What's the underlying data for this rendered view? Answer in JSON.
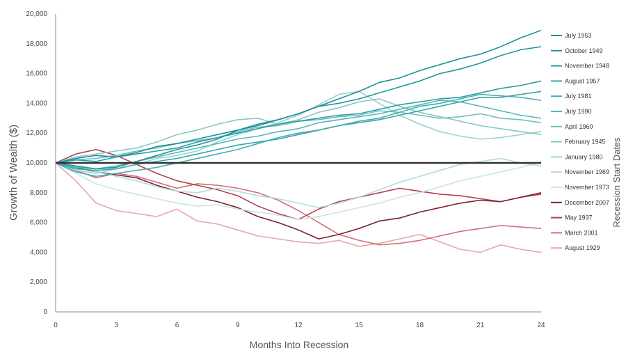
{
  "chart_data": {
    "type": "line",
    "xlabel": "Months Into Recession",
    "ylabel": "Growth of Wealth ($)",
    "right_label": "Recession Start Dates",
    "xlim": [
      0,
      24
    ],
    "ylim": [
      0,
      20000
    ],
    "x_ticks": [
      0,
      3,
      6,
      9,
      12,
      15,
      18,
      21,
      24
    ],
    "x_tick_labels": [
      "0",
      "3",
      "6",
      "9",
      "12",
      "15",
      "18",
      "21",
      "24"
    ],
    "y_ticks": [
      0,
      2000,
      4000,
      6000,
      8000,
      10000,
      12000,
      14000,
      16000,
      18000,
      20000
    ],
    "y_tick_labels": [
      "0",
      "2,000",
      "4,000",
      "6,000",
      "8,000",
      "10,000",
      "12,000",
      "14,000",
      "16,000",
      "18,000",
      "20,000"
    ],
    "baseline": 10000,
    "baseline_color": "#333333",
    "grid": false,
    "legend_position": "right",
    "series": [
      {
        "name": "July 1953",
        "color": "#1f8f9b",
        "values": [
          10000,
          10300,
          10500,
          10400,
          10700,
          11100,
          11300,
          11600,
          11900,
          12200,
          12600,
          12900,
          13300,
          13800,
          14300,
          14800,
          15400,
          15700,
          16200,
          16600,
          17000,
          17300,
          17800,
          18400,
          18900
        ]
      },
      {
        "name": "October 1949",
        "color": "#23969d",
        "values": [
          10000,
          9800,
          9600,
          9700,
          10100,
          10500,
          10900,
          11200,
          11600,
          12200,
          12500,
          12900,
          13300,
          13800,
          14000,
          14300,
          14700,
          15100,
          15500,
          16000,
          16300,
          16700,
          17200,
          17600,
          17800
        ]
      },
      {
        "name": "November 1948",
        "color": "#2a9ca5",
        "values": [
          10000,
          10200,
          10100,
          10400,
          10600,
          10800,
          11000,
          11400,
          11700,
          12000,
          12300,
          12600,
          12800,
          13000,
          13200,
          13300,
          13600,
          13900,
          14100,
          14300,
          14400,
          14700,
          15000,
          15200,
          15500
        ]
      },
      {
        "name": "August 1957",
        "color": "#3aa6ad",
        "values": [
          10000,
          9600,
          9500,
          9600,
          9900,
          10100,
          10300,
          10600,
          10900,
          11200,
          11400,
          11600,
          11900,
          12200,
          12500,
          12700,
          12900,
          13200,
          13500,
          13800,
          14100,
          14400,
          14400,
          14600,
          14800
        ]
      },
      {
        "name": "July 1981",
        "color": "#46aeb2",
        "values": [
          10000,
          9400,
          9100,
          9300,
          9500,
          9700,
          10000,
          10300,
          10600,
          10900,
          11300,
          11700,
          12000,
          12200,
          12500,
          12800,
          13000,
          13400,
          13800,
          14000,
          14300,
          14600,
          14500,
          14400,
          14200
        ]
      },
      {
        "name": "July 1990",
        "color": "#58b7b8",
        "values": [
          10000,
          9700,
          9600,
          9800,
          10100,
          10400,
          10700,
          11000,
          11300,
          11600,
          11800,
          12100,
          12300,
          12700,
          12900,
          13100,
          13300,
          13600,
          13900,
          14200,
          14100,
          13800,
          13500,
          13200,
          13000
        ]
      },
      {
        "name": "April 1960",
        "color": "#6ebfbf",
        "values": [
          10000,
          10200,
          10300,
          10500,
          10800,
          11000,
          11300,
          11500,
          11700,
          12100,
          12400,
          12500,
          12800,
          12900,
          13100,
          13200,
          13500,
          13400,
          13200,
          13000,
          13100,
          13300,
          13000,
          12900,
          12700
        ]
      },
      {
        "name": "February 1945",
        "color": "#85c8c6",
        "values": [
          10000,
          10400,
          10600,
          10800,
          11000,
          11400,
          11900,
          12200,
          12600,
          12900,
          13000,
          12600,
          12900,
          13400,
          13700,
          14100,
          14300,
          13800,
          13400,
          13100,
          12800,
          12500,
          12300,
          12100,
          11900
        ]
      },
      {
        "name": "January 1980",
        "color": "#9dd1cf",
        "values": [
          10000,
          9500,
          9300,
          9600,
          9900,
          10300,
          10500,
          10800,
          11400,
          11900,
          12300,
          12700,
          13200,
          13900,
          14600,
          14800,
          14000,
          13200,
          12600,
          12100,
          11800,
          11600,
          11700,
          11900,
          12100
        ]
      },
      {
        "name": "November 1969",
        "color": "#b4dcd9",
        "values": [
          10000,
          9800,
          9400,
          9100,
          8800,
          8400,
          8100,
          8000,
          8300,
          8100,
          7800,
          7600,
          7300,
          7000,
          7300,
          7700,
          8200,
          8700,
          9100,
          9500,
          9900,
          10100,
          10300,
          10000,
          9800
        ]
      },
      {
        "name": "November 1973",
        "color": "#c9e6e3",
        "values": [
          10000,
          9300,
          8600,
          8200,
          7900,
          7600,
          7300,
          7100,
          7200,
          6900,
          6700,
          6500,
          6200,
          6400,
          6700,
          7000,
          7300,
          7700,
          8000,
          8400,
          8800,
          9100,
          9400,
          9700,
          10100
        ]
      },
      {
        "name": "December 2007",
        "color": "#7d1e2e",
        "values": [
          10000,
          9700,
          9400,
          9200,
          9000,
          8500,
          8100,
          7700,
          7400,
          7000,
          6400,
          6000,
          5500,
          4900,
          5200,
          5600,
          6100,
          6300,
          6700,
          7000,
          7300,
          7500,
          7400,
          7700,
          8000
        ]
      },
      {
        "name": "May 1937",
        "color": "#b3404f",
        "values": [
          10000,
          10600,
          10900,
          10500,
          9900,
          9300,
          8800,
          8500,
          8200,
          7800,
          7100,
          6600,
          6200,
          6900,
          7400,
          7700,
          8000,
          8300,
          8100,
          7900,
          7800,
          7600,
          7400,
          7700,
          7900
        ]
      },
      {
        "name": "March 2001",
        "color": "#cf7078",
        "values": [
          10000,
          9500,
          9000,
          9300,
          9100,
          8700,
          8300,
          8600,
          8500,
          8300,
          8000,
          7500,
          6800,
          6000,
          5200,
          4800,
          4500,
          4600,
          4800,
          5100,
          5400,
          5600,
          5800,
          5700,
          5600
        ]
      },
      {
        "name": "August 1929",
        "color": "#e7a6aa",
        "values": [
          10000,
          8800,
          7300,
          6800,
          6600,
          6400,
          6900,
          6100,
          5900,
          5500,
          5100,
          4900,
          4700,
          4600,
          4800,
          4400,
          4600,
          4900,
          5200,
          4700,
          4200,
          4000,
          4500,
          4200,
          4000
        ]
      }
    ]
  }
}
